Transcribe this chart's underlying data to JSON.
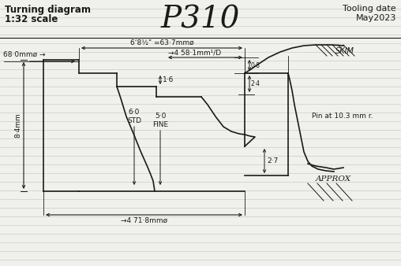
{
  "title": "P310",
  "subtitle_left_1": "Turning diagram",
  "subtitle_left_2": "1:32 scale",
  "subtitle_right_1": "Tooling date",
  "subtitle_right_2": "May2023",
  "bg_color": "#f0f0ec",
  "line_color": "#1a1a1a",
  "fig_width": 5.08,
  "fig_height": 3.38,
  "dpi": 100
}
